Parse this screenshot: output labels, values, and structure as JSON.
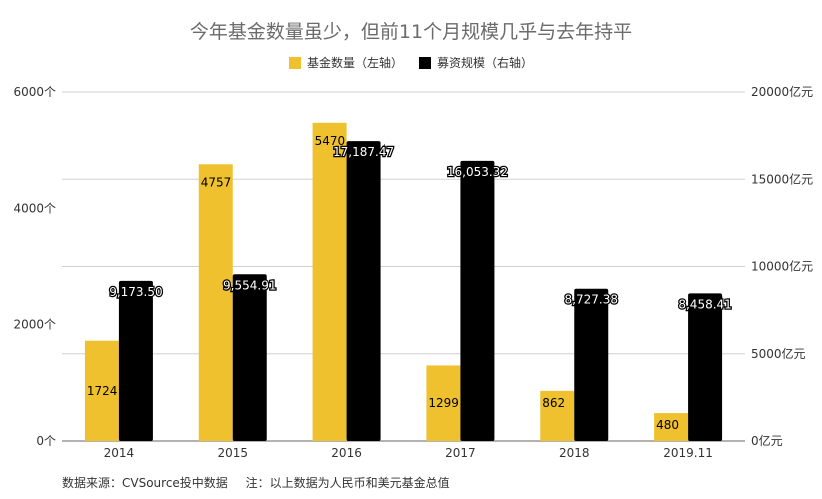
{
  "chart_data": {
    "type": "bar",
    "title": "今年基金数量虽少，但前11个月规模几乎与去年持平",
    "categories": [
      "2014",
      "2015",
      "2016",
      "2017",
      "2018",
      "2019.11"
    ],
    "series": [
      {
        "name": "基金数量（左轴）",
        "axis": "left",
        "color": "#F0C12E",
        "values": [
          1724,
          4757,
          5470,
          1299,
          862,
          480
        ],
        "labels": [
          "1724",
          "4757",
          "5470",
          "1299",
          "862",
          "480"
        ]
      },
      {
        "name": "募资规模（右轴）",
        "axis": "right",
        "color": "#000000",
        "values": [
          9173.5,
          9554.91,
          17187.47,
          16053.32,
          8727.38,
          8458.41
        ],
        "labels": [
          "9,173.50",
          "9,554.91",
          "17,187.47",
          "16,053.32",
          "8,727.38",
          "8,458.41"
        ]
      }
    ],
    "left_axis": {
      "range": [
        0,
        6000
      ],
      "ticks": [
        0,
        2000,
        4000,
        6000
      ],
      "tick_labels": [
        "0个",
        "2000个",
        "4000个",
        "6000个"
      ]
    },
    "right_axis": {
      "range": [
        0,
        20000
      ],
      "ticks": [
        0,
        5000,
        10000,
        15000,
        20000
      ],
      "tick_labels": [
        "0亿元",
        "5000亿元",
        "10000亿元",
        "15000亿元",
        "20000亿元"
      ]
    },
    "grid": true,
    "legend_position": "top-center"
  },
  "footer": {
    "source": "数据来源：CVSource投中数据",
    "note": "注：以上数据为人民币和美元基金总值"
  }
}
